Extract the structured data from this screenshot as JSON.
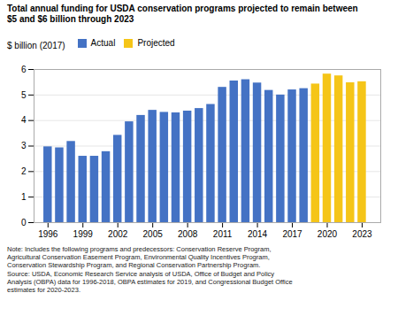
{
  "chart_data": {
    "type": "bar",
    "title": "Total annual funding for USDA conservation programs projected to remain between\n$5 and $6 billion through 2023",
    "ylabel": "$ billion (2017)",
    "note": "Note: Includes the following programs and predecessors: Conservation Reserve Program,\nAgricultural Conservation Easement Program, Environmental Quality Incentives Program,\nConservation Stewardship Program, and Regional Conservation Partnership Program.\nSource: USDA, Economic Research Service analysis of USDA, Office of Budget and Policy\nAnalysis (OBPA) data for 1996-2018, OBPA estimates for 2019, and Congressional Budget Office\nestimates for 2020-2023.",
    "x": [
      1996,
      1997,
      1998,
      1999,
      2000,
      2001,
      2002,
      2003,
      2004,
      2005,
      2006,
      2007,
      2008,
      2009,
      2010,
      2011,
      2012,
      2013,
      2014,
      2015,
      2016,
      2017,
      2018,
      2019,
      2020,
      2021,
      2022,
      2023
    ],
    "series": [
      {
        "name": "Actual",
        "color": "#4472C4",
        "values": [
          2.97,
          2.93,
          3.18,
          2.6,
          2.6,
          2.78,
          3.42,
          3.95,
          4.2,
          4.4,
          4.32,
          4.3,
          4.37,
          4.47,
          4.63,
          5.3,
          5.55,
          5.6,
          5.47,
          5.18,
          5.0,
          5.2,
          5.25,
          null,
          null,
          null,
          null,
          null
        ]
      },
      {
        "name": "Projected",
        "color": "#F5C518",
        "values": [
          null,
          null,
          null,
          null,
          null,
          null,
          null,
          null,
          null,
          null,
          null,
          null,
          null,
          null,
          null,
          null,
          null,
          null,
          null,
          null,
          null,
          null,
          null,
          5.43,
          5.82,
          5.75,
          5.48,
          5.52
        ]
      }
    ],
    "xlim": [
      1994.8,
      2024.6
    ],
    "xticks": [
      1996,
      1999,
      2002,
      2005,
      2008,
      2011,
      2014,
      2017,
      2020,
      2023
    ],
    "ylim": [
      0,
      6
    ],
    "yticks": [
      0,
      1,
      2,
      3,
      4,
      5,
      6
    ],
    "grid": true,
    "legend": "upper left"
  }
}
